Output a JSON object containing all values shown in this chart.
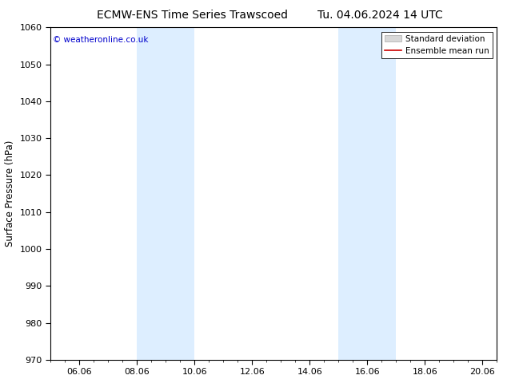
{
  "title_left": "ECMW-ENS Time Series Trawscoed",
  "title_right": "Tu. 04.06.2024 14 UTC",
  "ylabel": "Surface Pressure (hPa)",
  "ylim": [
    970,
    1060
  ],
  "yticks": [
    970,
    980,
    990,
    1000,
    1010,
    1020,
    1030,
    1040,
    1050,
    1060
  ],
  "xlim_start": 0,
  "xlim_end": 15.5,
  "xtick_labels": [
    "06.06",
    "08.06",
    "10.06",
    "12.06",
    "14.06",
    "16.06",
    "18.06",
    "20.06"
  ],
  "xtick_positions": [
    1,
    3,
    5,
    7,
    9,
    11,
    13,
    15
  ],
  "shaded_bands": [
    {
      "start": 3,
      "end": 5,
      "color": "#ddeeff",
      "alpha": 1.0
    },
    {
      "start": 10,
      "end": 12,
      "color": "#ddeeff",
      "alpha": 1.0
    }
  ],
  "watermark": "© weatheronline.co.uk",
  "watermark_color": "#0000cc",
  "background_color": "#ffffff",
  "plot_background": "#ffffff",
  "std_dev_color": "#d8d8d8",
  "std_dev_edge": "#aaaaaa",
  "ensemble_mean_color": "#cc0000",
  "legend_std_label": "Standard deviation",
  "legend_mean_label": "Ensemble mean run",
  "title_fontsize": 10,
  "tick_fontsize": 8,
  "ylabel_fontsize": 8.5,
  "watermark_fontsize": 7.5,
  "legend_fontsize": 7.5
}
